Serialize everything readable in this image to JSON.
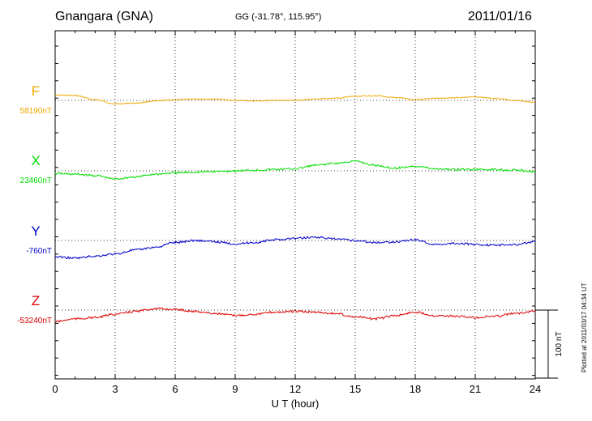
{
  "header": {
    "station": "Gnangara (GNA)",
    "coords": "GG (-31.78°, 115.95°)",
    "date": "2011/01/16"
  },
  "footer": {
    "plotted": "Plotted at 2011/03/17 04:34 UT"
  },
  "colors": {
    "F": "#f0a800",
    "X": "#00dd00",
    "Y": "#0000cc",
    "Z": "#dd0000"
  },
  "chart_data": {
    "type": "line",
    "xlabel": "U T (hour)",
    "xlim": [
      0,
      24
    ],
    "x_ticks": [
      "0",
      "3",
      "6",
      "9",
      "12",
      "15",
      "18",
      "21",
      "24"
    ],
    "scale_bar": "100 nT",
    "grid": "dotted, vertical every 3 h and one baseline per series",
    "x": [
      0,
      1,
      2,
      3,
      4,
      5,
      6,
      7,
      8,
      9,
      10,
      11,
      12,
      13,
      14,
      15,
      16,
      17,
      18,
      19,
      20,
      21,
      22,
      23,
      24
    ],
    "series": [
      {
        "name": "F",
        "baseline_label": "58190nT",
        "baseline": 58190,
        "values": [
          58198,
          58197,
          58191,
          58185,
          58186,
          58189,
          58191,
          58192,
          58192,
          58190,
          58189,
          58190,
          58190,
          58192,
          58193,
          58196,
          58197,
          58194,
          58191,
          58193,
          58194,
          58195,
          58193,
          58190,
          58187
        ]
      },
      {
        "name": "X",
        "baseline_label": "23460nT",
        "baseline": 23460,
        "values": [
          23456,
          23455,
          23453,
          23448,
          23451,
          23455,
          23457,
          23458,
          23459,
          23460,
          23461,
          23462,
          23463,
          23468,
          23471,
          23474,
          23468,
          23464,
          23467,
          23463,
          23462,
          23462,
          23462,
          23461,
          23459
        ]
      },
      {
        "name": "Y",
        "baseline_label": "-760nT",
        "baseline": -760,
        "values": [
          -784,
          -786,
          -783,
          -780,
          -774,
          -770,
          -763,
          -760,
          -762,
          -765,
          -763,
          -759,
          -757,
          -755,
          -758,
          -760,
          -763,
          -762,
          -759,
          -766,
          -764,
          -766,
          -767,
          -766,
          -762
        ]
      },
      {
        "name": "Z",
        "baseline_label": "-53240nT",
        "baseline": -53240,
        "values": [
          -53257,
          -53253,
          -53251,
          -53246,
          -53242,
          -53238,
          -53239,
          -53242,
          -53245,
          -53248,
          -53246,
          -53243,
          -53242,
          -53243,
          -53245,
          -53250,
          -53253,
          -53248,
          -53243,
          -53248,
          -53249,
          -53251,
          -53249,
          -53245,
          -53241
        ]
      }
    ]
  }
}
